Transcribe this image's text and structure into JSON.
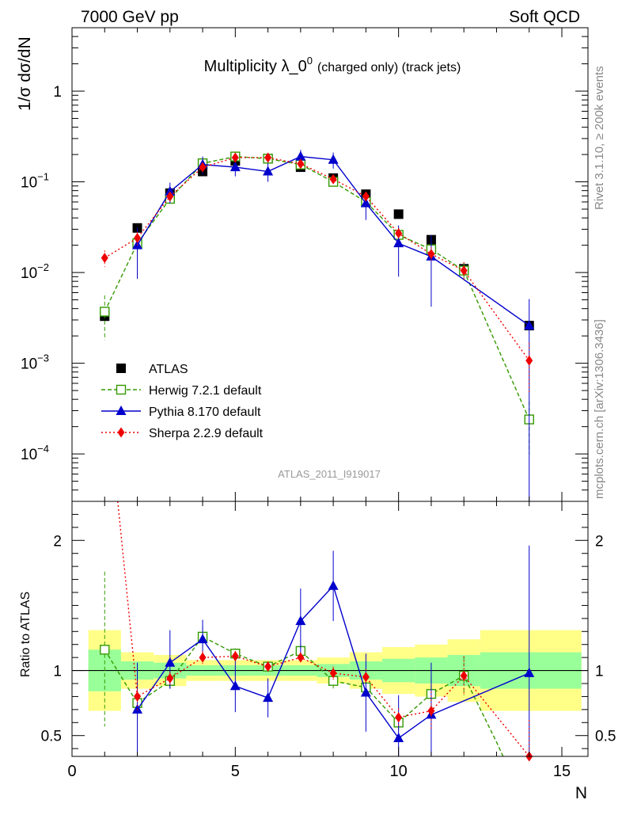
{
  "header": {
    "energy_label": "7000 GeV pp",
    "process_label": "Soft QCD"
  },
  "side_labels": {
    "rivet": "Rivet 3.1.10, ≥ 200k events",
    "source": "mcplots.cern.ch [arXiv:1306.3436]"
  },
  "chart_data": [
    {
      "type": "scatter",
      "panel": "main",
      "title_main": "Multiplicity λ_0",
      "title_sup": "0",
      "title_sub": "(charged only) (track jets)",
      "ylabel": "1/σ dσ/dN",
      "yscale": "log",
      "ylim": [
        3e-05,
        5
      ],
      "xlim": [
        0,
        15.8
      ],
      "y_ticks": [
        {
          "value": 0.0001,
          "base": "10",
          "exp": "−4"
        },
        {
          "value": 0.001,
          "base": "10",
          "exp": "−3"
        },
        {
          "value": 0.01,
          "base": "10",
          "exp": "−2"
        },
        {
          "value": 0.1,
          "base": "10",
          "exp": "−1"
        },
        {
          "value": 1,
          "base": "1",
          "exp": ""
        }
      ],
      "watermark": "ATLAS_2011_I919017",
      "legend_position": "lower-left",
      "series": [
        {
          "name": "ATLAS",
          "color": "#000000",
          "marker": "square",
          "x": [
            1,
            2,
            3,
            4,
            5,
            6,
            7,
            8,
            9,
            10,
            11,
            12,
            14
          ],
          "y": [
            0.0033,
            0.031,
            0.075,
            0.13,
            0.17,
            0.18,
            0.145,
            0.11,
            0.073,
            0.044,
            0.023,
            0.011,
            0.0026
          ]
        },
        {
          "name": "Herwig 7.2.1 default",
          "color": "#339900",
          "marker": "open-square",
          "dash": "5,3",
          "x": [
            1,
            2,
            3,
            4,
            5,
            6,
            7,
            8,
            9,
            10,
            11,
            12,
            14
          ],
          "y": [
            0.0037,
            0.021,
            0.065,
            0.16,
            0.19,
            0.18,
            0.155,
            0.1,
            0.06,
            0.026,
            0.018,
            0.0105,
            0.00024
          ],
          "err_lo": [
            0.0019,
            0.004,
            0.007,
            0.012,
            0.012,
            0.012,
            0.011,
            0.009,
            0.007,
            0.004,
            0.004,
            0.0025,
            0.00014
          ],
          "err_hi": [
            0.0019,
            0.004,
            0.007,
            0.012,
            0.012,
            0.012,
            0.011,
            0.009,
            0.007,
            0.004,
            0.004,
            0.0025,
            0.00014
          ]
        },
        {
          "name": "Pythia 8.170 default",
          "color": "#0000cc",
          "marker": "triangle",
          "x": [
            2,
            3,
            4,
            5,
            6,
            7,
            8,
            9,
            10,
            11,
            14
          ],
          "y": [
            0.02,
            0.078,
            0.155,
            0.145,
            0.13,
            0.19,
            0.175,
            0.058,
            0.021,
            0.015,
            0.0026
          ],
          "err_lo": [
            0.0115,
            0.02,
            0.035,
            0.03,
            0.03,
            0.035,
            0.035,
            0.02,
            0.012,
            0.0108,
            0.0026
          ],
          "err_hi": [
            0.0115,
            0.02,
            0.035,
            0.03,
            0.03,
            0.035,
            0.035,
            0.02,
            0.012,
            0.0108,
            0.0025
          ]
        },
        {
          "name": "Sherpa 2.2.9 default",
          "color": "#ee0000",
          "marker": "diamond",
          "dash": "2,3",
          "x": [
            1,
            2,
            3,
            4,
            5,
            6,
            7,
            8,
            9,
            10,
            11,
            12,
            14
          ],
          "y": [
            0.0145,
            0.024,
            0.069,
            0.145,
            0.185,
            0.185,
            0.158,
            0.107,
            0.069,
            0.027,
            0.016,
            0.0105,
            0.00107
          ],
          "err_lo": [
            0.003,
            0.004,
            0.007,
            0.01,
            0.01,
            0.01,
            0.01,
            0.008,
            0.006,
            0.004,
            0.003,
            0.0025,
            0.0006
          ],
          "err_hi": [
            0.003,
            0.004,
            0.007,
            0.01,
            0.01,
            0.01,
            0.01,
            0.008,
            0.006,
            0.004,
            0.003,
            0.0025,
            0.0006
          ]
        }
      ]
    },
    {
      "type": "line",
      "panel": "ratio",
      "ylabel": "Ratio to ATLAS",
      "xlabel": "N",
      "xlim": [
        0,
        15.8
      ],
      "ylim": [
        0.34,
        2.3
      ],
      "x_ticks": [
        0,
        5,
        10,
        15
      ],
      "y_ticks": [
        0.5,
        1,
        2
      ],
      "y_tick_labels": [
        "0.5",
        "1",
        "2"
      ],
      "reference": 1,
      "bands": [
        {
          "x0": 0.5,
          "x1": 1.5,
          "in_lo": 0.84,
          "in_hi": 1.16,
          "out_lo": 0.69,
          "out_hi": 1.31
        },
        {
          "x0": 1.5,
          "x1": 2.5,
          "in_lo": 0.93,
          "in_hi": 1.07,
          "out_lo": 0.86,
          "out_hi": 1.14
        },
        {
          "x0": 2.5,
          "x1": 3.5,
          "in_lo": 0.94,
          "in_hi": 1.06,
          "out_lo": 0.88,
          "out_hi": 1.12
        },
        {
          "x0": 3.5,
          "x1": 4.5,
          "in_lo": 0.96,
          "in_hi": 1.04,
          "out_lo": 0.92,
          "out_hi": 1.08
        },
        {
          "x0": 4.5,
          "x1": 5.5,
          "in_lo": 0.96,
          "in_hi": 1.04,
          "out_lo": 0.92,
          "out_hi": 1.08
        },
        {
          "x0": 5.5,
          "x1": 6.5,
          "in_lo": 0.96,
          "in_hi": 1.04,
          "out_lo": 0.92,
          "out_hi": 1.08
        },
        {
          "x0": 6.5,
          "x1": 7.5,
          "in_lo": 0.96,
          "in_hi": 1.04,
          "out_lo": 0.92,
          "out_hi": 1.08
        },
        {
          "x0": 7.5,
          "x1": 8.5,
          "in_lo": 0.95,
          "in_hi": 1.05,
          "out_lo": 0.9,
          "out_hi": 1.1
        },
        {
          "x0": 8.5,
          "x1": 9.5,
          "in_lo": 0.93,
          "in_hi": 1.07,
          "out_lo": 0.86,
          "out_hi": 1.14
        },
        {
          "x0": 9.5,
          "x1": 10.5,
          "in_lo": 0.91,
          "in_hi": 1.09,
          "out_lo": 0.82,
          "out_hi": 1.18
        },
        {
          "x0": 10.5,
          "x1": 11.5,
          "in_lo": 0.9,
          "in_hi": 1.1,
          "out_lo": 0.8,
          "out_hi": 1.2
        },
        {
          "x0": 11.5,
          "x1": 12.5,
          "in_lo": 0.88,
          "in_hi": 1.12,
          "out_lo": 0.76,
          "out_hi": 1.24
        },
        {
          "x0": 12.5,
          "x1": 15.6,
          "in_lo": 0.86,
          "in_hi": 1.14,
          "out_lo": 0.69,
          "out_hi": 1.31
        }
      ],
      "series": [
        {
          "name": "Herwig 7.2.1 default",
          "color": "#339900",
          "marker": "open-square",
          "dash": "5,3",
          "x": [
            1,
            2,
            3,
            4,
            5,
            6,
            7,
            8,
            9,
            10,
            11,
            12,
            13,
            13.2
          ],
          "y": [
            1.16,
            0.75,
            0.92,
            1.26,
            1.13,
            1.03,
            1.15,
            0.92,
            0.87,
            0.6,
            0.82,
            0.96,
            0.45,
            0.34
          ],
          "markers": [
            true,
            true,
            true,
            true,
            true,
            true,
            true,
            true,
            true,
            true,
            true,
            true,
            false,
            false
          ],
          "err_lo": [
            0.59,
            0.15,
            0.07,
            0.08,
            0.04,
            0.04,
            0.05,
            0.07,
            0.07,
            0.06,
            0.12,
            0.15,
            0,
            0
          ],
          "err_hi": [
            0.6,
            0.15,
            0.07,
            0.08,
            0.04,
            0.04,
            0.05,
            0.07,
            0.07,
            0.06,
            0.12,
            0.15,
            0,
            0
          ]
        },
        {
          "name": "Pythia 8.170 default",
          "color": "#0000cc",
          "marker": "triangle",
          "x": [
            2,
            3,
            4,
            5,
            6,
            7,
            8,
            9,
            10,
            11,
            14
          ],
          "y": [
            0.7,
            1.06,
            1.24,
            0.88,
            0.79,
            1.38,
            1.65,
            0.83,
            0.48,
            0.66,
            0.98
          ],
          "err_lo": [
            0.36,
            0.2,
            0.15,
            0.2,
            0.15,
            0.25,
            0.27,
            0.3,
            0.27,
            0.32,
            0.98
          ],
          "err_hi": [
            0.36,
            0.25,
            0.15,
            0.2,
            0.15,
            0.25,
            0.27,
            0.3,
            0.33,
            0.4,
            0.98
          ]
        },
        {
          "name": "Sherpa 2.2.9 default",
          "color": "#ee0000",
          "marker": "diamond",
          "dash": "2,3",
          "x": [
            1.4,
            2,
            3,
            4,
            5,
            6,
            7,
            8,
            9,
            10,
            11,
            12,
            14
          ],
          "y": [
            2.3,
            0.8,
            0.94,
            1.1,
            1.11,
            1.03,
            1.1,
            0.98,
            0.95,
            0.64,
            0.69,
            0.96,
            0.34
          ],
          "markers": [
            false,
            true,
            true,
            true,
            true,
            true,
            true,
            true,
            true,
            true,
            true,
            true,
            true
          ],
          "err_lo": [
            0,
            0.12,
            0.05,
            0.05,
            0.04,
            0.04,
            0.04,
            0.05,
            0.06,
            0.07,
            0.15,
            0.15,
            0.3
          ],
          "err_hi": [
            0,
            0.12,
            0.05,
            0.05,
            0.04,
            0.04,
            0.04,
            0.05,
            0.06,
            0.07,
            0.15,
            0.15,
            0.28
          ]
        }
      ]
    }
  ]
}
